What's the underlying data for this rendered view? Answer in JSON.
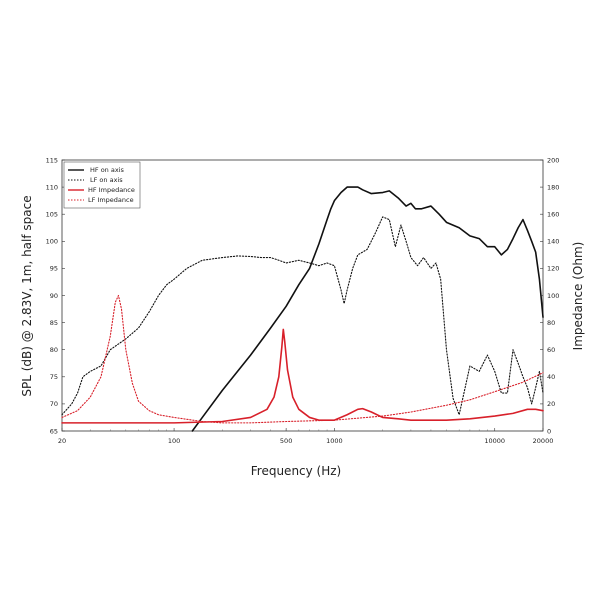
{
  "chart_data": {
    "type": "line",
    "xlabel": "Frequency (Hz)",
    "ylabel": "SPL (dB) @ 2.83V, 1m, half space",
    "y2label": "Impedance (Ohm)",
    "xscale": "log",
    "xlim": [
      20,
      20000
    ],
    "ylim": [
      65,
      115
    ],
    "y2lim": [
      0,
      200
    ],
    "grid": false,
    "legend_position": "top-left",
    "x_ticks": [
      {
        "value": 20,
        "label": "20"
      },
      {
        "value": 100,
        "label": "100"
      },
      {
        "value": 500,
        "label": "500"
      },
      {
        "value": 1000,
        "label": "1000"
      },
      {
        "value": 10000,
        "label": "10000"
      },
      {
        "value": 20000,
        "label": "20000"
      }
    ],
    "y_ticks": [
      "65",
      "70",
      "75",
      "80",
      "85",
      "90",
      "95",
      "100",
      "105",
      "110",
      "115"
    ],
    "y2_ticks": [
      "0",
      "20",
      "40",
      "60",
      "80",
      "100",
      "120",
      "140",
      "160",
      "180",
      "200"
    ],
    "series": [
      {
        "name": "HF on axis",
        "axis": "left",
        "color": "#111111",
        "style": "solid",
        "points": [
          [
            130,
            65
          ],
          [
            150,
            67.5
          ],
          [
            200,
            72.5
          ],
          [
            300,
            79
          ],
          [
            400,
            84
          ],
          [
            500,
            88
          ],
          [
            600,
            92
          ],
          [
            700,
            95
          ],
          [
            800,
            99.5
          ],
          [
            900,
            104
          ],
          [
            950,
            106
          ],
          [
            1000,
            107.5
          ],
          [
            1100,
            109
          ],
          [
            1200,
            110
          ],
          [
            1300,
            110
          ],
          [
            1400,
            110
          ],
          [
            1500,
            109.5
          ],
          [
            1700,
            108.8
          ],
          [
            2000,
            109
          ],
          [
            2200,
            109.3
          ],
          [
            2500,
            108
          ],
          [
            2800,
            106.5
          ],
          [
            3000,
            107
          ],
          [
            3200,
            106
          ],
          [
            3500,
            106
          ],
          [
            4000,
            106.5
          ],
          [
            4500,
            105
          ],
          [
            5000,
            103.5
          ],
          [
            6000,
            102.5
          ],
          [
            7000,
            101
          ],
          [
            8000,
            100.5
          ],
          [
            9000,
            99
          ],
          [
            10000,
            99
          ],
          [
            11000,
            97.5
          ],
          [
            12000,
            98.5
          ],
          [
            13000,
            100.5
          ],
          [
            14000,
            102.5
          ],
          [
            15000,
            104
          ],
          [
            16000,
            102
          ],
          [
            17000,
            100
          ],
          [
            18000,
            98
          ],
          [
            19000,
            93
          ],
          [
            20000,
            86
          ]
        ]
      },
      {
        "name": "LF on axis",
        "axis": "left",
        "color": "#111111",
        "style": "dotted",
        "points": [
          [
            20,
            68
          ],
          [
            23,
            70
          ],
          [
            25,
            72
          ],
          [
            27,
            75
          ],
          [
            30,
            76
          ],
          [
            35,
            77
          ],
          [
            40,
            80
          ],
          [
            50,
            82
          ],
          [
            60,
            84
          ],
          [
            70,
            87
          ],
          [
            80,
            90
          ],
          [
            90,
            92
          ],
          [
            100,
            93
          ],
          [
            120,
            95
          ],
          [
            150,
            96.5
          ],
          [
            200,
            97
          ],
          [
            250,
            97.3
          ],
          [
            300,
            97.2
          ],
          [
            350,
            97
          ],
          [
            400,
            97
          ],
          [
            450,
            96.5
          ],
          [
            500,
            96
          ],
          [
            600,
            96.5
          ],
          [
            700,
            96
          ],
          [
            800,
            95.5
          ],
          [
            900,
            96
          ],
          [
            1000,
            95.5
          ],
          [
            1100,
            91
          ],
          [
            1150,
            88.5
          ],
          [
            1200,
            91
          ],
          [
            1300,
            95
          ],
          [
            1400,
            97.5
          ],
          [
            1600,
            98.5
          ],
          [
            1800,
            101.5
          ],
          [
            2000,
            104.5
          ],
          [
            2200,
            104
          ],
          [
            2400,
            99
          ],
          [
            2600,
            103
          ],
          [
            2800,
            100
          ],
          [
            3000,
            97
          ],
          [
            3300,
            95.5
          ],
          [
            3600,
            97
          ],
          [
            4000,
            95
          ],
          [
            4300,
            96
          ],
          [
            4600,
            93
          ],
          [
            5000,
            80
          ],
          [
            5500,
            71
          ],
          [
            6000,
            68
          ],
          [
            7000,
            77
          ],
          [
            8000,
            76
          ],
          [
            9000,
            79
          ],
          [
            10000,
            76
          ],
          [
            11000,
            72
          ],
          [
            12000,
            72
          ],
          [
            13000,
            80
          ],
          [
            14000,
            77.5
          ],
          [
            15000,
            75
          ],
          [
            16000,
            73
          ],
          [
            17000,
            70
          ],
          [
            18000,
            73
          ],
          [
            19000,
            76
          ],
          [
            20000,
            72
          ]
        ]
      },
      {
        "name": "HF Impedance",
        "axis": "right",
        "color": "#d8202a",
        "style": "solid",
        "points": [
          [
            20,
            6
          ],
          [
            100,
            6
          ],
          [
            200,
            7
          ],
          [
            300,
            10
          ],
          [
            380,
            16
          ],
          [
            420,
            25
          ],
          [
            450,
            40
          ],
          [
            470,
            62
          ],
          [
            480,
            75
          ],
          [
            490,
            66
          ],
          [
            510,
            45
          ],
          [
            550,
            25
          ],
          [
            600,
            16
          ],
          [
            700,
            10
          ],
          [
            800,
            8
          ],
          [
            1000,
            8
          ],
          [
            1200,
            12
          ],
          [
            1400,
            16
          ],
          [
            1500,
            16.5
          ],
          [
            1700,
            14
          ],
          [
            2000,
            10
          ],
          [
            2500,
            9
          ],
          [
            3000,
            8
          ],
          [
            4000,
            8
          ],
          [
            5000,
            8
          ],
          [
            7000,
            9
          ],
          [
            10000,
            11
          ],
          [
            13000,
            13
          ],
          [
            16000,
            16
          ],
          [
            18000,
            16
          ],
          [
            20000,
            15
          ]
        ]
      },
      {
        "name": "LF Impedance",
        "axis": "right",
        "color": "#d8202a",
        "style": "dotted",
        "points": [
          [
            20,
            10
          ],
          [
            25,
            15
          ],
          [
            30,
            25
          ],
          [
            35,
            40
          ],
          [
            40,
            70
          ],
          [
            43,
            95
          ],
          [
            45,
            100
          ],
          [
            47,
            90
          ],
          [
            50,
            60
          ],
          [
            55,
            35
          ],
          [
            60,
            22
          ],
          [
            70,
            15
          ],
          [
            80,
            12
          ],
          [
            100,
            10
          ],
          [
            150,
            7
          ],
          [
            200,
            6
          ],
          [
            300,
            6
          ],
          [
            500,
            7
          ],
          [
            1000,
            8
          ],
          [
            2000,
            11
          ],
          [
            3000,
            14
          ],
          [
            5000,
            19
          ],
          [
            7000,
            23
          ],
          [
            10000,
            29
          ],
          [
            15000,
            36
          ],
          [
            20000,
            43
          ]
        ]
      }
    ]
  }
}
